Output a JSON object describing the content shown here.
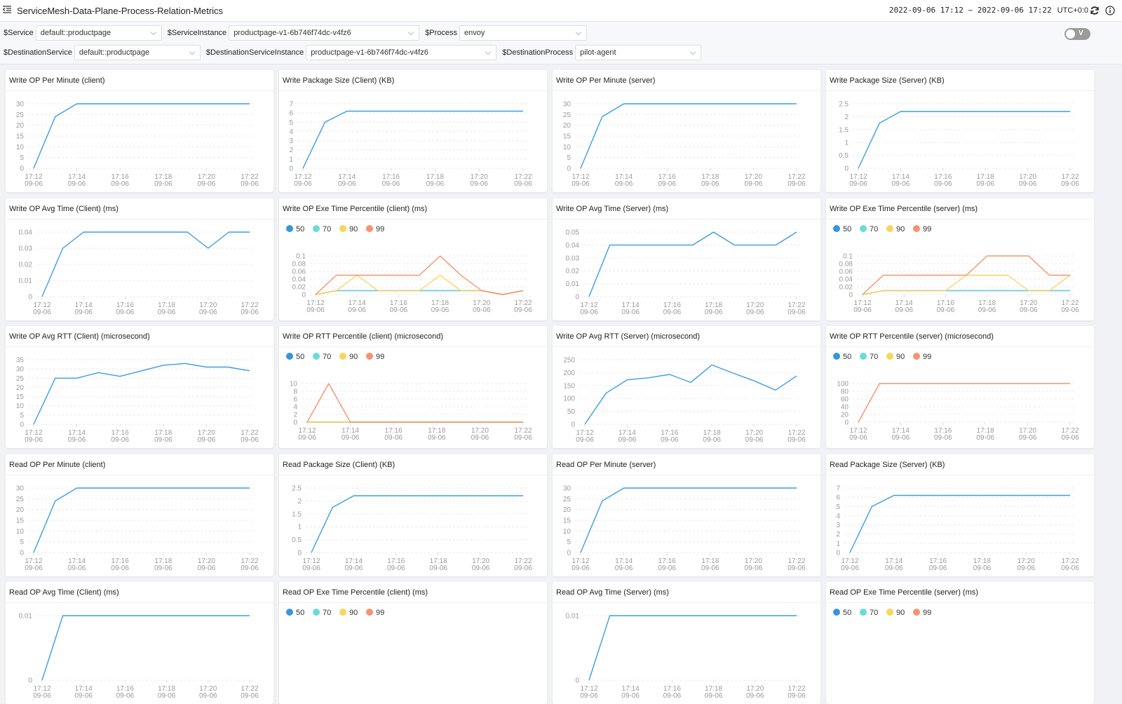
{
  "header": {
    "title": "ServiceMesh-Data-Plane-Process-Relation-Metrics",
    "time_range": "2022-09-06 17:12 ~ 2022-09-06 17:22",
    "timezone": "UTC+0:0",
    "icons": [
      "menu-fold-icon",
      "refresh-icon",
      "info-icon"
    ]
  },
  "filters": {
    "row1": [
      {
        "label": "$Service",
        "value": "default::productpage"
      },
      {
        "label": "$ServiceInstance",
        "value": "productpage-v1-6b746f74dc-v4fz6"
      },
      {
        "label": "$Process",
        "value": "envoy"
      }
    ],
    "row2": [
      {
        "label": "$DestinationService",
        "value": "default::productpage"
      },
      {
        "label": "$DestinationServiceInstance",
        "value": "productpage-v1-6b746f74dc-v4fz6"
      },
      {
        "label": "$DestinationProcess",
        "value": "pilot-agent"
      }
    ],
    "toggle_label": "V",
    "toggle_on": false
  },
  "colors": {
    "line": "#3a9ee4",
    "p50": "#3a95d8",
    "p70": "#6cdada",
    "p90": "#fcd35c",
    "p99": "#f7926f"
  },
  "x_axis": {
    "times": [
      "17:12",
      "17:13",
      "17:14",
      "17:15",
      "17:16",
      "17:17",
      "17:18",
      "17:19",
      "17:20",
      "17:21",
      "17:22"
    ],
    "tick_labels": [
      [
        "17:12",
        "09-06"
      ],
      [
        "17:14",
        "09-06"
      ],
      [
        "17:16",
        "09-06"
      ],
      [
        "17:18",
        "09-06"
      ],
      [
        "17:20",
        "09-06"
      ],
      [
        "17:22",
        "09-06"
      ]
    ]
  },
  "chart_data": [
    {
      "type": "line",
      "title": "Write OP Per Minute (client)",
      "yticks": [
        "0",
        "5",
        "10",
        "15",
        "20",
        "25",
        "30"
      ],
      "series": [
        {
          "color": "#3a9ee4",
          "values": [
            0,
            24,
            30,
            30,
            30,
            30,
            30,
            30,
            30,
            30,
            30
          ]
        }
      ]
    },
    {
      "type": "line",
      "title": "Write Package Size (Client) (KB)",
      "yticks": [
        "0",
        "1",
        "2",
        "3",
        "4",
        "5",
        "6",
        "7"
      ],
      "series": [
        {
          "color": "#3a9ee4",
          "values": [
            0,
            5,
            6.2,
            6.2,
            6.2,
            6.2,
            6.2,
            6.2,
            6.2,
            6.2,
            6.2
          ]
        }
      ]
    },
    {
      "type": "line",
      "title": "Write OP Per Minute (server)",
      "yticks": [
        "0",
        "5",
        "10",
        "15",
        "20",
        "25",
        "30"
      ],
      "series": [
        {
          "color": "#3a9ee4",
          "values": [
            0,
            24,
            30,
            30,
            30,
            30,
            30,
            30,
            30,
            30,
            30
          ]
        }
      ]
    },
    {
      "type": "line",
      "title": "Write Package Size (Server) (KB)",
      "yticks": [
        "0",
        "0.5",
        "1",
        "1.5",
        "2",
        "2.5"
      ],
      "series": [
        {
          "color": "#3a9ee4",
          "values": [
            0,
            1.75,
            2.2,
            2.2,
            2.2,
            2.2,
            2.2,
            2.2,
            2.2,
            2.2,
            2.2
          ]
        }
      ]
    },
    {
      "type": "line",
      "title": "Write OP Avg Time (Client) (ms)",
      "yticks": [
        "0",
        "0.01",
        "0.02",
        "0.03",
        "0.04"
      ],
      "series": [
        {
          "color": "#3a9ee4",
          "values": [
            0,
            0.03,
            0.04,
            0.04,
            0.04,
            0.04,
            0.04,
            0.04,
            0.03,
            0.04,
            0.04
          ]
        }
      ]
    },
    {
      "type": "line",
      "title": "Write OP Exe Time Percentile (client) (ms)",
      "legend": [
        "50",
        "70",
        "90",
        "99"
      ],
      "yticks": [
        "0",
        "0.02",
        "0.04",
        "0.06",
        "0.08",
        "0.1"
      ],
      "series": [
        {
          "name": "50",
          "color": "#3a95d8",
          "values": [
            0,
            0.01,
            0.01,
            0.01,
            0.01,
            0.01,
            0.01,
            0.01,
            0.01,
            0,
            0.01
          ]
        },
        {
          "name": "70",
          "color": "#6cdada",
          "values": [
            0,
            0.01,
            0.01,
            0.01,
            0.01,
            0.01,
            0.01,
            0.01,
            0.01,
            0,
            0.01
          ]
        },
        {
          "name": "90",
          "color": "#fcd35c",
          "values": [
            0,
            0.01,
            0.05,
            0.01,
            0.01,
            0.01,
            0.05,
            0.01,
            0.01,
            0,
            0.01
          ]
        },
        {
          "name": "99",
          "color": "#f7926f",
          "values": [
            0,
            0.05,
            0.05,
            0.05,
            0.05,
            0.05,
            0.1,
            0.05,
            0.01,
            0,
            0.01
          ]
        }
      ]
    },
    {
      "type": "line",
      "title": "Write OP Avg Time (Server) (ms)",
      "yticks": [
        "0",
        "0.01",
        "0.02",
        "0.03",
        "0.04",
        "0.05"
      ],
      "series": [
        {
          "color": "#3a9ee4",
          "values": [
            0,
            0.04,
            0.04,
            0.04,
            0.04,
            0.04,
            0.05,
            0.04,
            0.04,
            0.04,
            0.05
          ]
        }
      ]
    },
    {
      "type": "line",
      "title": "Write OP Exe Time Percentile (server) (ms)",
      "legend": [
        "50",
        "70",
        "90",
        "99"
      ],
      "yticks": [
        "0",
        "0.02",
        "0.04",
        "0.06",
        "0.08",
        "0.1"
      ],
      "series": [
        {
          "name": "50",
          "color": "#3a95d8",
          "values": [
            0,
            0.01,
            0.01,
            0.01,
            0.01,
            0.01,
            0.01,
            0.01,
            0.01,
            0.01,
            0.01
          ]
        },
        {
          "name": "70",
          "color": "#6cdada",
          "values": [
            0,
            0.01,
            0.01,
            0.01,
            0.01,
            0.01,
            0.01,
            0.01,
            0.01,
            0.01,
            0.01
          ]
        },
        {
          "name": "90",
          "color": "#fcd35c",
          "values": [
            0,
            0.01,
            0.01,
            0.01,
            0.01,
            0.05,
            0.05,
            0.05,
            0.01,
            0.01,
            0.05
          ]
        },
        {
          "name": "99",
          "color": "#f7926f",
          "values": [
            0,
            0.05,
            0.05,
            0.05,
            0.05,
            0.05,
            0.1,
            0.1,
            0.1,
            0.05,
            0.05
          ]
        }
      ]
    },
    {
      "type": "line",
      "title": "Write OP Avg RTT (Client) (microsecond)",
      "yticks": [
        "0",
        "5",
        "10",
        "15",
        "20",
        "25",
        "30",
        "35"
      ],
      "series": [
        {
          "color": "#3a9ee4",
          "values": [
            0,
            25,
            25,
            28,
            26,
            29,
            32,
            33,
            31,
            31,
            29
          ]
        }
      ]
    },
    {
      "type": "line",
      "title": "Write OP RTT Percentile (client) (microsecond)",
      "legend": [
        "50",
        "70",
        "90",
        "99"
      ],
      "yticks": [
        "0",
        "2",
        "4",
        "6",
        "8",
        "10"
      ],
      "series": [
        {
          "name": "50",
          "color": "#3a95d8",
          "values": [
            0,
            0,
            0,
            0,
            0,
            0,
            0,
            0,
            0,
            0,
            0
          ]
        },
        {
          "name": "70",
          "color": "#6cdada",
          "values": [
            0,
            0,
            0,
            0,
            0,
            0,
            0,
            0,
            0,
            0,
            0
          ]
        },
        {
          "name": "90",
          "color": "#fcd35c",
          "values": [
            0,
            0,
            0,
            0,
            0,
            0,
            0,
            0,
            0,
            0,
            0
          ]
        },
        {
          "name": "99",
          "color": "#f7926f",
          "values": [
            0,
            10,
            0,
            0,
            0,
            0,
            0,
            0,
            0,
            0,
            0
          ]
        }
      ]
    },
    {
      "type": "line",
      "title": "Write OP Avg RTT (Server) (microsecond)",
      "yticks": [
        "0",
        "50",
        "100",
        "150",
        "200",
        "250"
      ],
      "series": [
        {
          "color": "#3a9ee4",
          "values": [
            0,
            120,
            172,
            180,
            193,
            162,
            230,
            198,
            168,
            132,
            187
          ]
        }
      ]
    },
    {
      "type": "line",
      "title": "Write OP RTT Percentile (server) (microsecond)",
      "legend": [
        "50",
        "70",
        "90",
        "99"
      ],
      "yticks": [
        "0",
        "20",
        "40",
        "60",
        "80",
        "100"
      ],
      "series": [
        {
          "name": "99",
          "color": "#f7926f",
          "values": [
            0,
            100,
            100,
            100,
            100,
            100,
            100,
            100,
            100,
            100,
            100
          ]
        }
      ]
    },
    {
      "type": "line",
      "title": "Read OP Per Minute (client)",
      "yticks": [
        "0",
        "5",
        "10",
        "15",
        "20",
        "25",
        "30"
      ],
      "series": [
        {
          "color": "#3a9ee4",
          "values": [
            0,
            24,
            30,
            30,
            30,
            30,
            30,
            30,
            30,
            30,
            30
          ]
        }
      ]
    },
    {
      "type": "line",
      "title": "Read Package Size (Client) (KB)",
      "yticks": [
        "0",
        "0.5",
        "1",
        "1.5",
        "2",
        "2.5"
      ],
      "series": [
        {
          "color": "#3a9ee4",
          "values": [
            0,
            1.75,
            2.2,
            2.2,
            2.2,
            2.2,
            2.2,
            2.2,
            2.2,
            2.2,
            2.2
          ]
        }
      ]
    },
    {
      "type": "line",
      "title": "Read OP Per Minute (server)",
      "yticks": [
        "0",
        "5",
        "10",
        "15",
        "20",
        "25",
        "30"
      ],
      "series": [
        {
          "color": "#3a9ee4",
          "values": [
            0,
            24,
            30,
            30,
            30,
            30,
            30,
            30,
            30,
            30,
            30
          ]
        }
      ]
    },
    {
      "type": "line",
      "title": "Read Package Size (Server) (KB)",
      "yticks": [
        "0",
        "1",
        "2",
        "3",
        "4",
        "5",
        "6",
        "7"
      ],
      "series": [
        {
          "color": "#3a9ee4",
          "values": [
            0,
            5,
            6.2,
            6.2,
            6.2,
            6.2,
            6.2,
            6.2,
            6.2,
            6.2,
            6.2
          ]
        }
      ]
    },
    {
      "type": "line",
      "title": "Read OP Avg Time (Client) (ms)",
      "yticks": [
        "0",
        "0.01"
      ],
      "series": [
        {
          "color": "#3a9ee4",
          "values": [
            0,
            0.01,
            0.01,
            0.01,
            0.01,
            0.01,
            0.01,
            0.01,
            0.01,
            0.01,
            0.01
          ]
        }
      ]
    },
    {
      "type": "line",
      "title": "Read OP Exe Time Percentile (client) (ms)",
      "legend": [
        "50",
        "70",
        "90",
        "99"
      ],
      "yticks": [],
      "series": []
    },
    {
      "type": "line",
      "title": "Read OP Avg Time (Server) (ms)",
      "yticks": [
        "0",
        "0.01"
      ],
      "series": [
        {
          "color": "#3a9ee4",
          "values": [
            0,
            0.01,
            0.01,
            0.01,
            0.01,
            0.01,
            0.01,
            0.01,
            0.01,
            0.01,
            0.01
          ]
        }
      ]
    },
    {
      "type": "line",
      "title": "Read OP Exe Time Percentile (server) (ms)",
      "legend": [
        "50",
        "70",
        "90",
        "99"
      ],
      "yticks": [],
      "series": []
    }
  ]
}
